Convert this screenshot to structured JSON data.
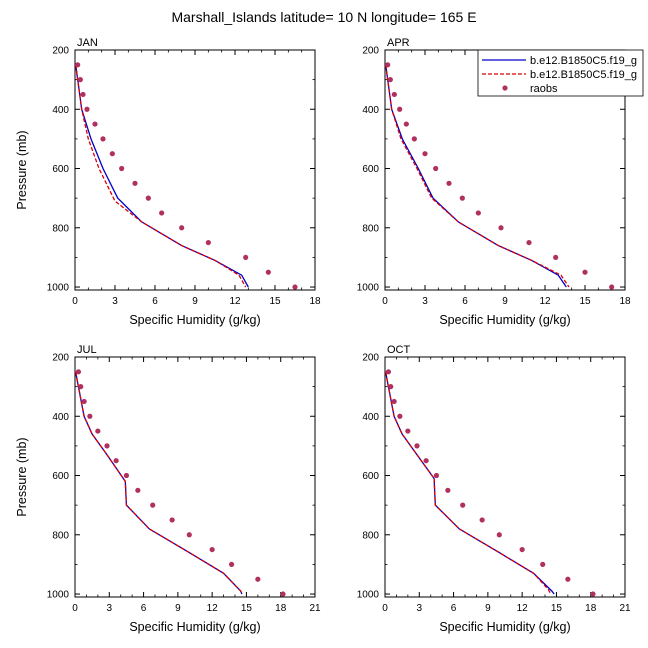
{
  "figure": {
    "title": "Marshall_Islands  latitude= 10 N longitude= 165 E"
  },
  "legend": {
    "placement": "top-right of APR panel",
    "entries": [
      {
        "label": "b.e12.B1850C5.f19_g",
        "style": "solid",
        "color": "#0000cc"
      },
      {
        "label": "b.e12.B1850C5.f19_g",
        "style": "dashed",
        "color": "#dd0000"
      },
      {
        "label": "raobs",
        "style": "dots",
        "color": "#b03060"
      }
    ]
  },
  "chart_data": [
    {
      "type": "line",
      "panel": "JAN",
      "xlabel": "Specific Humidity (g/kg)",
      "ylabel": "Pressure (mb)",
      "xlim": [
        0,
        18
      ],
      "ylim": [
        1010,
        200
      ],
      "xticks": [
        0,
        3,
        6,
        9,
        12,
        15,
        18
      ],
      "yticks": [
        200,
        400,
        600,
        800,
        1000
      ],
      "series": [
        {
          "name": "b.e12.B1850C5.f19_g",
          "color": "#0000cc",
          "dash": "solid",
          "points": [
            [
              0.05,
              250
            ],
            [
              0.2,
              300
            ],
            [
              0.5,
              400
            ],
            [
              1.2,
              500
            ],
            [
              2.1,
              600
            ],
            [
              3.2,
              700
            ],
            [
              5,
              780
            ],
            [
              8,
              860
            ],
            [
              10.5,
              910
            ],
            [
              12.5,
              960
            ],
            [
              13,
              1000
            ]
          ]
        },
        {
          "name": "b.e12.B1850C5.f19_g",
          "color": "#dd0000",
          "dash": "dashed",
          "points": [
            [
              0.05,
              250
            ],
            [
              0.2,
              300
            ],
            [
              0.5,
              400
            ],
            [
              1,
              500
            ],
            [
              1.8,
              600
            ],
            [
              3,
              710
            ],
            [
              5,
              780
            ],
            [
              8,
              860
            ],
            [
              10.5,
              910
            ],
            [
              12.3,
              960
            ],
            [
              12.8,
              1000
            ]
          ]
        },
        {
          "name": "raobs",
          "color": "#b03060",
          "dash": "dots",
          "points": [
            [
              0.2,
              250
            ],
            [
              0.4,
              300
            ],
            [
              0.6,
              350
            ],
            [
              0.9,
              400
            ],
            [
              1.5,
              450
            ],
            [
              2.1,
              500
            ],
            [
              2.8,
              550
            ],
            [
              3.5,
              600
            ],
            [
              4.5,
              650
            ],
            [
              5.5,
              700
            ],
            [
              6.5,
              750
            ],
            [
              8,
              800
            ],
            [
              10,
              850
            ],
            [
              12.8,
              900
            ],
            [
              14.5,
              950
            ],
            [
              16.5,
              1000
            ]
          ]
        }
      ]
    },
    {
      "type": "line",
      "panel": "APR",
      "xlabel": "Specific Humidity (g/kg)",
      "ylabel": "",
      "xlim": [
        0,
        18
      ],
      "ylim": [
        1010,
        200
      ],
      "xticks": [
        0,
        3,
        6,
        9,
        12,
        15,
        18
      ],
      "yticks": [
        200,
        400,
        600,
        800,
        1000
      ],
      "series": [
        {
          "name": "b.e12.B1850C5.f19_g",
          "color": "#0000cc",
          "dash": "solid",
          "points": [
            [
              0.05,
              250
            ],
            [
              0.2,
              300
            ],
            [
              0.5,
              400
            ],
            [
              1.3,
              500
            ],
            [
              2.5,
              600
            ],
            [
              3.6,
              700
            ],
            [
              5.5,
              780
            ],
            [
              8.5,
              860
            ],
            [
              11,
              910
            ],
            [
              13,
              960
            ],
            [
              13.6,
              1000
            ]
          ]
        },
        {
          "name": "b.e12.B1850C5.f19_g",
          "color": "#dd0000",
          "dash": "dashed",
          "points": [
            [
              0.05,
              250
            ],
            [
              0.2,
              300
            ],
            [
              0.5,
              400
            ],
            [
              1.2,
              500
            ],
            [
              2.4,
              600
            ],
            [
              3.5,
              700
            ],
            [
              5.5,
              780
            ],
            [
              8.5,
              860
            ],
            [
              11,
              910
            ],
            [
              13.2,
              960
            ],
            [
              13.8,
              1000
            ]
          ]
        },
        {
          "name": "raobs",
          "color": "#b03060",
          "dash": "dots",
          "points": [
            [
              0.2,
              250
            ],
            [
              0.4,
              300
            ],
            [
              0.7,
              350
            ],
            [
              1.1,
              400
            ],
            [
              1.6,
              450
            ],
            [
              2.2,
              500
            ],
            [
              3,
              550
            ],
            [
              3.8,
              600
            ],
            [
              4.8,
              650
            ],
            [
              5.8,
              700
            ],
            [
              7,
              750
            ],
            [
              8.7,
              800
            ],
            [
              10.8,
              850
            ],
            [
              12.8,
              900
            ],
            [
              15,
              950
            ],
            [
              17,
              1000
            ]
          ]
        }
      ]
    },
    {
      "type": "line",
      "panel": "JUL",
      "xlabel": "Specific Humidity (g/kg)",
      "ylabel": "Pressure (mb)",
      "xlim": [
        0,
        21
      ],
      "ylim": [
        1010,
        200
      ],
      "xticks": [
        0,
        3,
        6,
        9,
        12,
        15,
        18,
        21
      ],
      "yticks": [
        200,
        400,
        600,
        800,
        1000
      ],
      "series": [
        {
          "name": "b.e12.B1850C5.f19_g",
          "color": "#0000cc",
          "dash": "solid",
          "points": [
            [
              0.05,
              250
            ],
            [
              0.3,
              300
            ],
            [
              0.8,
              400
            ],
            [
              1.5,
              460
            ],
            [
              2.8,
              530
            ],
            [
              4.4,
              620
            ],
            [
              4.5,
              700
            ],
            [
              6.5,
              780
            ],
            [
              10,
              860
            ],
            [
              13,
              930
            ],
            [
              14.5,
              990
            ],
            [
              14.6,
              1000
            ]
          ]
        },
        {
          "name": "b.e12.B1850C5.f19_g",
          "color": "#dd0000",
          "dash": "dashed",
          "points": [
            [
              0.05,
              250
            ],
            [
              0.3,
              300
            ],
            [
              0.8,
              400
            ],
            [
              1.5,
              460
            ],
            [
              2.8,
              530
            ],
            [
              4.4,
              620
            ],
            [
              4.5,
              700
            ],
            [
              6.5,
              780
            ],
            [
              10,
              860
            ],
            [
              13,
              930
            ],
            [
              14.5,
              990
            ],
            [
              14.6,
              1000
            ]
          ]
        },
        {
          "name": "raobs",
          "color": "#b03060",
          "dash": "dots",
          "points": [
            [
              0.3,
              250
            ],
            [
              0.5,
              300
            ],
            [
              0.8,
              350
            ],
            [
              1.3,
              400
            ],
            [
              2,
              450
            ],
            [
              2.8,
              500
            ],
            [
              3.6,
              550
            ],
            [
              4.5,
              600
            ],
            [
              5.5,
              650
            ],
            [
              6.8,
              700
            ],
            [
              8.5,
              750
            ],
            [
              10,
              800
            ],
            [
              12,
              850
            ],
            [
              13.7,
              900
            ],
            [
              16,
              950
            ],
            [
              18.2,
              1000
            ]
          ]
        }
      ]
    },
    {
      "type": "line",
      "panel": "OCT",
      "xlabel": "Specific Humidity (g/kg)",
      "ylabel": "",
      "xlim": [
        0,
        21
      ],
      "ylim": [
        1010,
        200
      ],
      "xticks": [
        0,
        3,
        6,
        9,
        12,
        15,
        18,
        21
      ],
      "yticks": [
        200,
        400,
        600,
        800,
        1000
      ],
      "series": [
        {
          "name": "b.e12.B1850C5.f19_g",
          "color": "#0000cc",
          "dash": "solid",
          "points": [
            [
              0.05,
              250
            ],
            [
              0.3,
              300
            ],
            [
              0.8,
              400
            ],
            [
              1.5,
              460
            ],
            [
              2.8,
              530
            ],
            [
              4.3,
              610
            ],
            [
              4.4,
              700
            ],
            [
              6.5,
              780
            ],
            [
              10,
              860
            ],
            [
              13,
              930
            ],
            [
              14.6,
              990
            ],
            [
              14.8,
              1000
            ]
          ]
        },
        {
          "name": "b.e12.B1850C5.f19_g",
          "color": "#dd0000",
          "dash": "dashed",
          "points": [
            [
              0.05,
              250
            ],
            [
              0.3,
              300
            ],
            [
              0.8,
              400
            ],
            [
              1.5,
              460
            ],
            [
              2.8,
              530
            ],
            [
              4.3,
              610
            ],
            [
              4.4,
              700
            ],
            [
              6.5,
              780
            ],
            [
              10,
              860
            ],
            [
              13,
              930
            ],
            [
              14.3,
              985
            ],
            [
              14.5,
              1000
            ]
          ]
        },
        {
          "name": "raobs",
          "color": "#b03060",
          "dash": "dots",
          "points": [
            [
              0.3,
              250
            ],
            [
              0.5,
              300
            ],
            [
              0.8,
              350
            ],
            [
              1.3,
              400
            ],
            [
              2,
              450
            ],
            [
              2.8,
              500
            ],
            [
              3.6,
              550
            ],
            [
              4.5,
              600
            ],
            [
              5.5,
              650
            ],
            [
              6.8,
              700
            ],
            [
              8.5,
              750
            ],
            [
              10,
              800
            ],
            [
              12,
              850
            ],
            [
              13.8,
              900
            ],
            [
              16,
              950
            ],
            [
              18.2,
              1000
            ]
          ]
        }
      ]
    }
  ]
}
